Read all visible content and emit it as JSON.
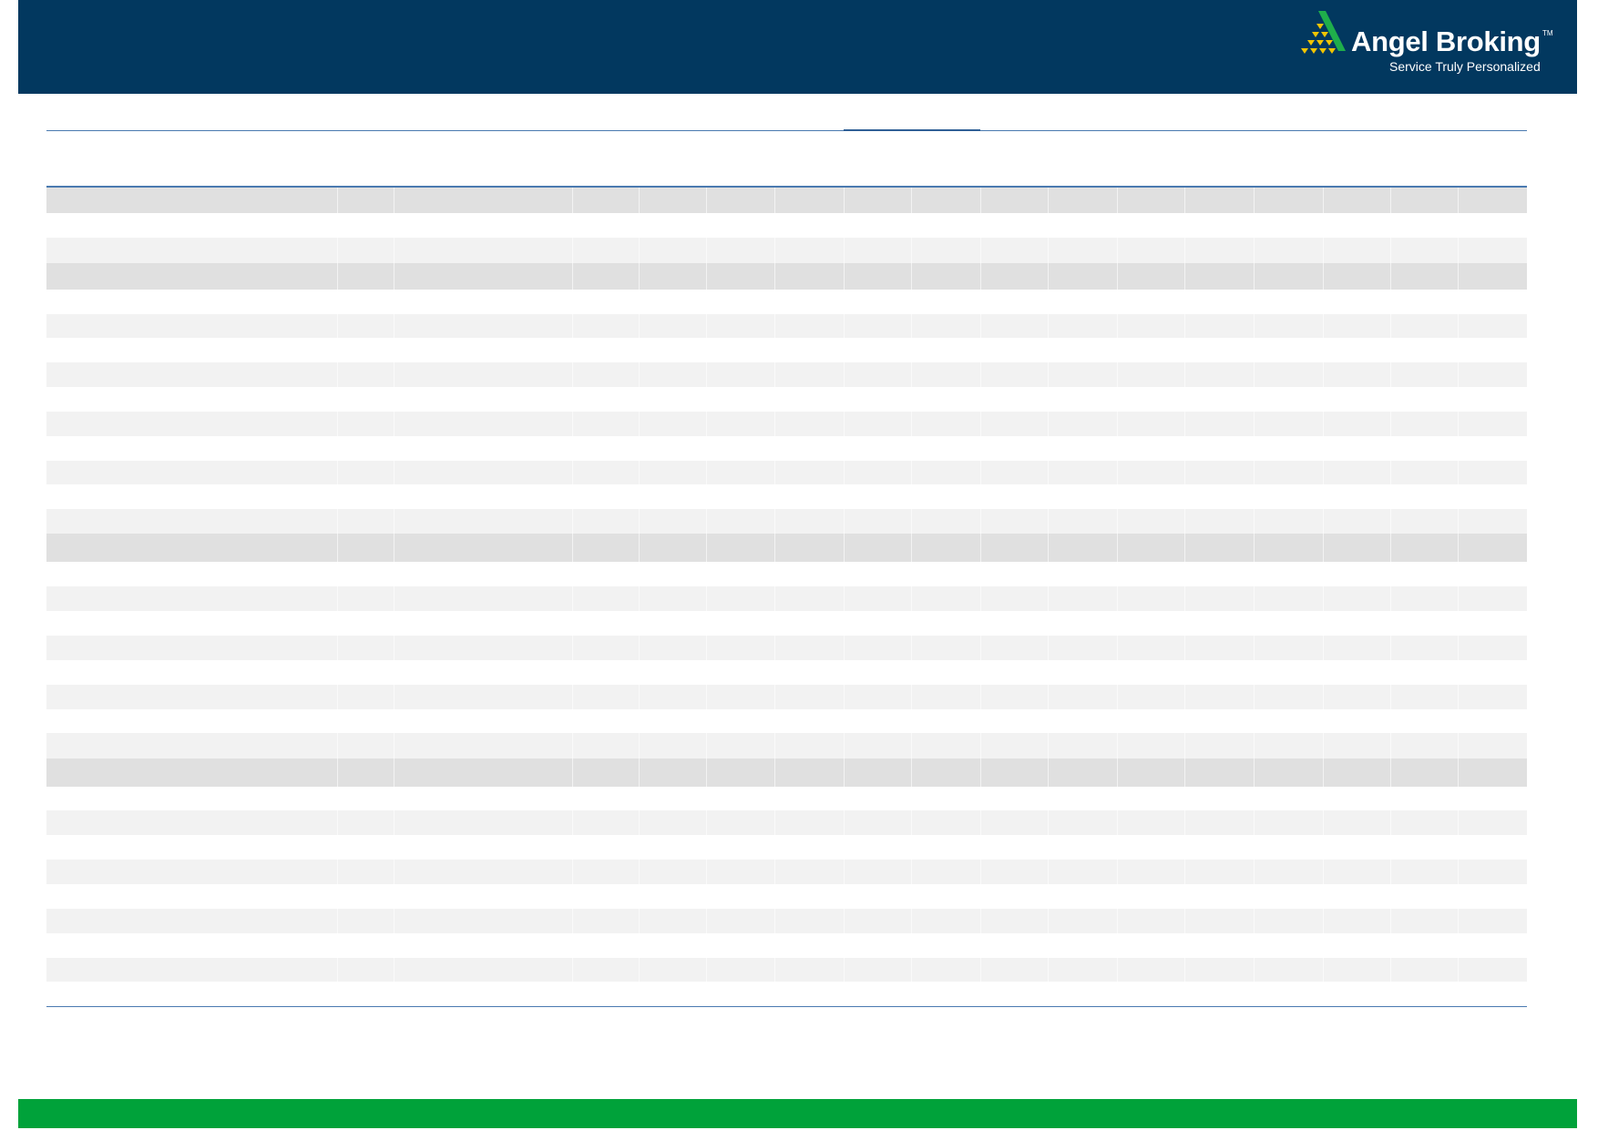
{
  "header": {
    "brand": "Angel Broking",
    "trademark": "TM",
    "tagline": "Service Truly Personalized",
    "background_color": "#02385f",
    "logo_icon": "gold-pyramid-with-green-wing"
  },
  "table": {
    "rule_color": "#4a7ab0",
    "band_colors": {
      "dark": "#e0e0e0",
      "light": "#f2f2f2",
      "white": "#ffffff"
    }
  },
  "footer": {
    "color": "#00a23a"
  }
}
